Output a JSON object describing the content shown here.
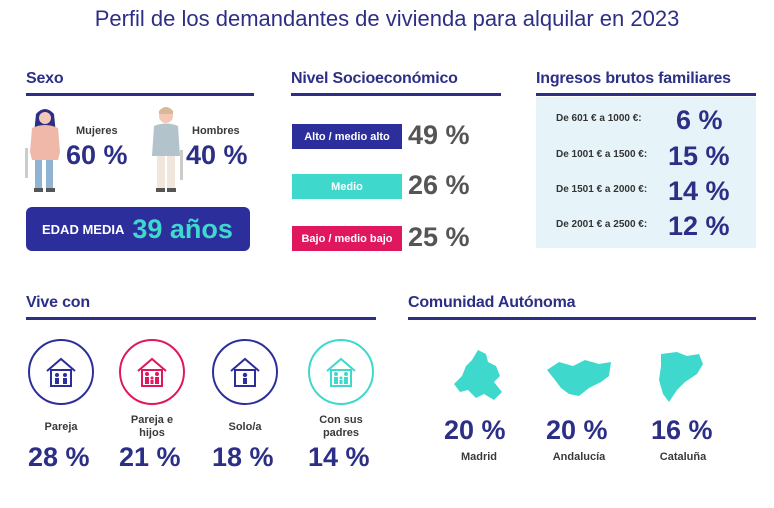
{
  "title": "Perfil de los demandantes de vivienda para alquilar en 2023",
  "sexo": {
    "heading": "Sexo",
    "mujeres_label": "Mujeres",
    "mujeres_pct": "60 %",
    "hombres_label": "Hombres",
    "hombres_pct": "40 %",
    "edad_label": "EDAD MEDIA",
    "edad_value": "39 años"
  },
  "nivel": {
    "heading": "Nivel Socioeconómico",
    "items": [
      {
        "label": "Alto / medio alto",
        "value": "49 %",
        "color": "#2c2f9b"
      },
      {
        "label": "Medio",
        "value": "26 %",
        "color": "#3ed9cc"
      },
      {
        "label": "Bajo / medio bajo",
        "value": "25 %",
        "color": "#e0175f"
      }
    ]
  },
  "ingresos": {
    "heading": "Ingresos brutos familiares",
    "items": [
      {
        "label": "De 601 € a 1000 €:",
        "value": "6 %"
      },
      {
        "label": "De 1001 € a 1500 €:",
        "value": "15 %"
      },
      {
        "label": "De 1501 € a 2000 €:",
        "value": "14 %"
      },
      {
        "label": "De 2001 € a 2500 €:",
        "value": "12 %"
      }
    ],
    "background": "#e6f4fa"
  },
  "vive_con": {
    "heading": "Vive con",
    "items": [
      {
        "label_1": "Pareja",
        "label_2": "",
        "value": "28 %",
        "color": "#2c2f9b",
        "icon": "couple-house-icon"
      },
      {
        "label_1": "Pareja e",
        "label_2": "hijos",
        "value": "21 %",
        "color": "#e0175f",
        "icon": "family-house-icon"
      },
      {
        "label_1": "Solo/a",
        "label_2": "",
        "value": "18 %",
        "color": "#2c2f9b",
        "icon": "single-house-icon"
      },
      {
        "label_1": "Con sus",
        "label_2": "padres",
        "value": "14 %",
        "color": "#3ed9cc",
        "icon": "parents-house-icon"
      }
    ]
  },
  "comunidad": {
    "heading": "Comunidad Autónoma",
    "items": [
      {
        "name": "Madrid",
        "value": "20 %",
        "icon": "madrid-map-icon"
      },
      {
        "name": "Andalucía",
        "value": "20 %",
        "icon": "andalucia-map-icon"
      },
      {
        "name": "Cataluña",
        "value": "16 %",
        "icon": "cataluna-map-icon"
      }
    ],
    "map_color": "#3ed9cc"
  }
}
